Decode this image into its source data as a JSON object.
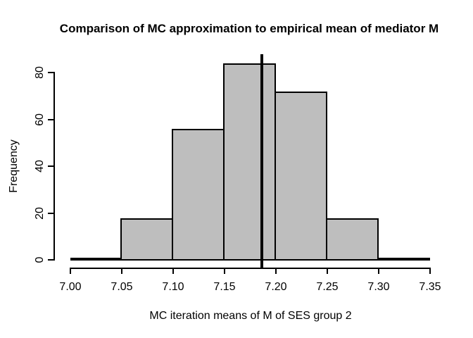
{
  "chart_data": {
    "type": "bar",
    "subtype": "histogram",
    "title": "Comparison of MC approximation to empirical mean of mediator M",
    "xlabel": "MC iteration means of M of SES group 2",
    "ylabel": "Frequency",
    "bin_edges": [
      7.0,
      7.05,
      7.1,
      7.15,
      7.2,
      7.25,
      7.3,
      7.35
    ],
    "counts": [
      1,
      18,
      56,
      84,
      72,
      18,
      1
    ],
    "x_ticks": [
      {
        "value": 7.0,
        "label": "7.00"
      },
      {
        "value": 7.05,
        "label": "7.05"
      },
      {
        "value": 7.1,
        "label": "7.10"
      },
      {
        "value": 7.15,
        "label": "7.15"
      },
      {
        "value": 7.2,
        "label": "7.20"
      },
      {
        "value": 7.25,
        "label": "7.25"
      },
      {
        "value": 7.3,
        "label": "7.30"
      },
      {
        "value": 7.35,
        "label": "7.35"
      }
    ],
    "y_ticks": [
      {
        "value": 0,
        "label": "0"
      },
      {
        "value": 20,
        "label": "20"
      },
      {
        "value": 40,
        "label": "40"
      },
      {
        "value": 60,
        "label": "60"
      },
      {
        "value": 80,
        "label": "80"
      }
    ],
    "xlim": [
      7.0,
      7.35
    ],
    "ylim": [
      0,
      84
    ],
    "vline_x": 7.186,
    "grid": false,
    "legend": null,
    "colors": {
      "bar_fill": "#BEBEBE",
      "bar_border": "#000000",
      "vline": "#000000",
      "axis": "#000000",
      "background": "#FFFFFF",
      "text": "#000000"
    }
  }
}
